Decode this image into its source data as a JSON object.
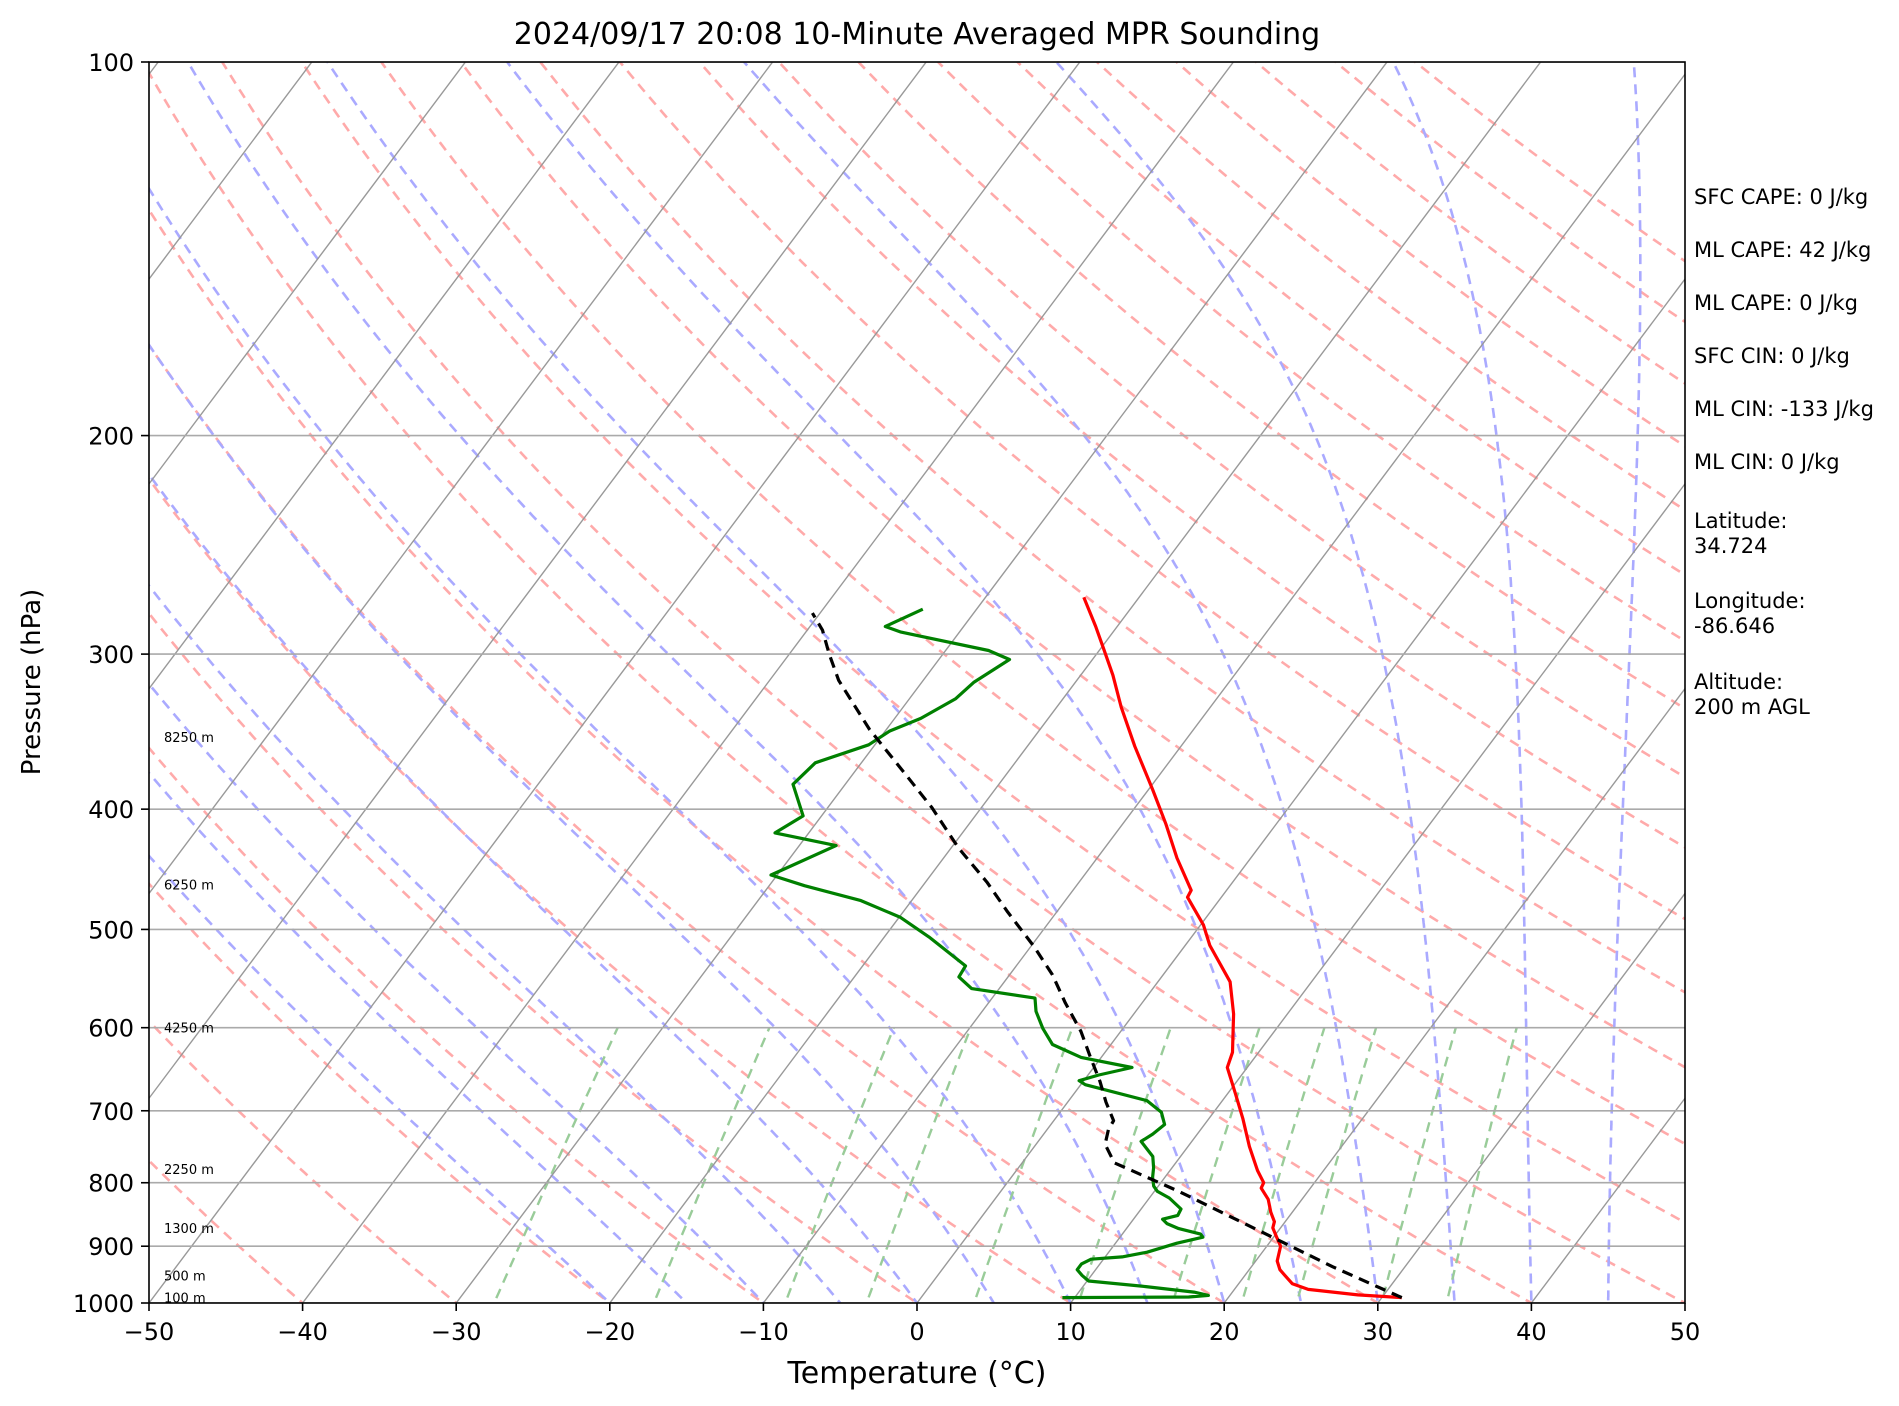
{
  "chart_data": {
    "type": "line",
    "title": "2024/09/17 20:08 10-Minute Averaged MPR Sounding",
    "xlabel": "Temperature (°C)",
    "ylabel": "Pressure (hPa)",
    "xlim": [
      -50,
      50
    ],
    "ylim": [
      1000,
      100
    ],
    "yscale": "log",
    "skew": "skew-T log-P",
    "xticks": [
      -50,
      -40,
      -30,
      -20,
      -10,
      0,
      10,
      20,
      30,
      40,
      50
    ],
    "xtick_labels": [
      "−50",
      "−40",
      "−30",
      "−20",
      "−10",
      "0",
      "10",
      "20",
      "30",
      "40",
      "50"
    ],
    "yticks": [
      1000,
      900,
      800,
      700,
      600,
      500,
      400,
      300,
      200,
      100
    ],
    "ytick_labels": [
      "1000",
      "900",
      "800",
      "700",
      "600",
      "500",
      "400",
      "300",
      "200",
      "100"
    ],
    "grid": true,
    "height_labels": [
      {
        "text": "100 m",
        "p": 990
      },
      {
        "text": "500 m",
        "p": 950
      },
      {
        "text": "1300 m",
        "p": 870
      },
      {
        "text": "2250 m",
        "p": 780
      },
      {
        "text": "4250 m",
        "p": 600
      },
      {
        "text": "6250 m",
        "p": 460
      },
      {
        "text": "8250 m",
        "p": 350
      }
    ],
    "series": [
      {
        "role": "temperature",
        "color": "#ff0000",
        "points": [
          [
            31.3,
            990
          ],
          [
            28.3,
            985
          ],
          [
            24.8,
            975
          ],
          [
            23.5,
            965
          ],
          [
            22.6,
            950
          ],
          [
            22,
            940
          ],
          [
            21.4,
            925
          ],
          [
            20.9,
            900
          ],
          [
            20.2,
            885
          ],
          [
            19.5,
            870
          ],
          [
            19.3,
            860
          ],
          [
            18.6,
            845
          ],
          [
            17.8,
            825
          ],
          [
            16.8,
            808
          ],
          [
            16.7,
            800
          ],
          [
            15.7,
            782
          ],
          [
            14,
            748
          ],
          [
            12.2,
            710
          ],
          [
            10.5,
            678
          ],
          [
            8.7,
            646
          ],
          [
            8.3,
            628
          ],
          [
            7.6,
            611
          ],
          [
            6.5,
            585
          ],
          [
            4.7,
            551
          ],
          [
            1.6,
            515
          ],
          [
            0.2,
            496
          ],
          [
            -2.2,
            471
          ],
          [
            -2.3,
            465
          ],
          [
            -4.8,
            438
          ],
          [
            -7.2,
            411
          ],
          [
            -9.7,
            386
          ],
          [
            -13,
            356
          ],
          [
            -15.8,
            331
          ],
          [
            -17.9,
            312
          ],
          [
            -19.8,
            297
          ],
          [
            -21.4,
            285
          ],
          [
            -23.6,
            270
          ]
        ]
      },
      {
        "role": "dewpoint",
        "color": "#008000",
        "points": [
          [
            9.2,
            990
          ],
          [
            17.4,
            989
          ],
          [
            18.6,
            986
          ],
          [
            17.5,
            980
          ],
          [
            14.1,
            970
          ],
          [
            10.1,
            960
          ],
          [
            9.4,
            950
          ],
          [
            8.8,
            940
          ],
          [
            8.8,
            930
          ],
          [
            9.2,
            922
          ],
          [
            11.1,
            918
          ],
          [
            12.5,
            910
          ],
          [
            14,
            895
          ],
          [
            15.4,
            885
          ],
          [
            15.1,
            880
          ],
          [
            13.4,
            871
          ],
          [
            12.4,
            863
          ],
          [
            11.9,
            856
          ],
          [
            12.7,
            850
          ],
          [
            12.6,
            840
          ],
          [
            11.3,
            823
          ],
          [
            10.2,
            813
          ],
          [
            9.7,
            805
          ],
          [
            9.2,
            792
          ],
          [
            8.8,
            778
          ],
          [
            8.2,
            762
          ],
          [
            6.7,
            741
          ],
          [
            7.1,
            731
          ],
          [
            7.4,
            718
          ],
          [
            6.6,
            702
          ],
          [
            5.1,
            687
          ],
          [
            0.3,
            667
          ],
          [
            -0.3,
            662
          ],
          [
            0.7,
            655
          ],
          [
            2.5,
            646
          ],
          [
            -1.3,
            634
          ],
          [
            -3.8,
            619
          ],
          [
            -5.2,
            601
          ],
          [
            -6.5,
            582
          ],
          [
            -7.2,
            568
          ],
          [
            -11.8,
            558
          ],
          [
            -13.2,
            546
          ],
          [
            -13.3,
            535
          ],
          [
            -14.5,
            526
          ],
          [
            -17.1,
            507
          ],
          [
            -19.9,
            489
          ],
          [
            -23.3,
            474
          ],
          [
            -27.7,
            461
          ],
          [
            -30.4,
            452
          ],
          [
            -27.6,
            428
          ],
          [
            -32.2,
            418
          ],
          [
            -31.2,
            405
          ],
          [
            -33.4,
            382
          ],
          [
            -33,
            367
          ],
          [
            -30.4,
            355
          ],
          [
            -29.7,
            346
          ],
          [
            -28.3,
            338
          ],
          [
            -27,
            326
          ],
          [
            -26.6,
            316
          ],
          [
            -25.4,
            303
          ],
          [
            -27.2,
            298
          ],
          [
            -33.8,
            288
          ],
          [
            -35.1,
            285
          ],
          [
            -33.5,
            276
          ]
        ]
      },
      {
        "role": "parcel",
        "color": "#000000",
        "dashed": true,
        "points": [
          [
            31.3,
            990
          ],
          [
            25.3,
            935
          ],
          [
            18.8,
            875
          ],
          [
            11.6,
            813
          ],
          [
            6,
            771
          ],
          [
            4.5,
            745
          ],
          [
            4,
            725
          ],
          [
            3.9,
            713
          ],
          [
            2.5,
            689
          ],
          [
            1.1,
            663
          ],
          [
            -0.7,
            634
          ],
          [
            -2.6,
            604
          ],
          [
            -5,
            573
          ],
          [
            -7.2,
            544
          ],
          [
            -9.8,
            516
          ],
          [
            -13.2,
            484
          ],
          [
            -16,
            458
          ],
          [
            -19.5,
            430
          ],
          [
            -23.2,
            399
          ],
          [
            -26.7,
            374
          ],
          [
            -31.1,
            345
          ],
          [
            -35.5,
            315
          ],
          [
            -37.4,
            300
          ],
          [
            -39,
            287
          ],
          [
            -40.5,
            278
          ]
        ]
      }
    ]
  },
  "side_panel": {
    "sfc_cape": "SFC CAPE: 0 J/kg",
    "ml_cape_1": "ML CAPE: 42 J/kg",
    "ml_cape_2": "ML CAPE: 0 J/kg",
    "sfc_cin": "SFC CIN: 0 J/kg",
    "ml_cin_1": "ML CIN: -133 J/kg",
    "ml_cin_2": "ML CIN: 0 J/kg",
    "latitude_label": "Latitude:",
    "latitude_value": "34.724",
    "longitude_label": "Longitude:",
    "longitude_value": "-86.646",
    "altitude_label": "Altitude:",
    "altitude_value": "200 m AGL"
  },
  "colors": {
    "temperature": "#ff0000",
    "dewpoint": "#008000",
    "parcel": "#000000",
    "isotherm": "#999999",
    "dry_adiabat": "#ffaaaa",
    "moist_adiabat": "#aaaaff",
    "mixing_ratio": "#99cc99"
  }
}
